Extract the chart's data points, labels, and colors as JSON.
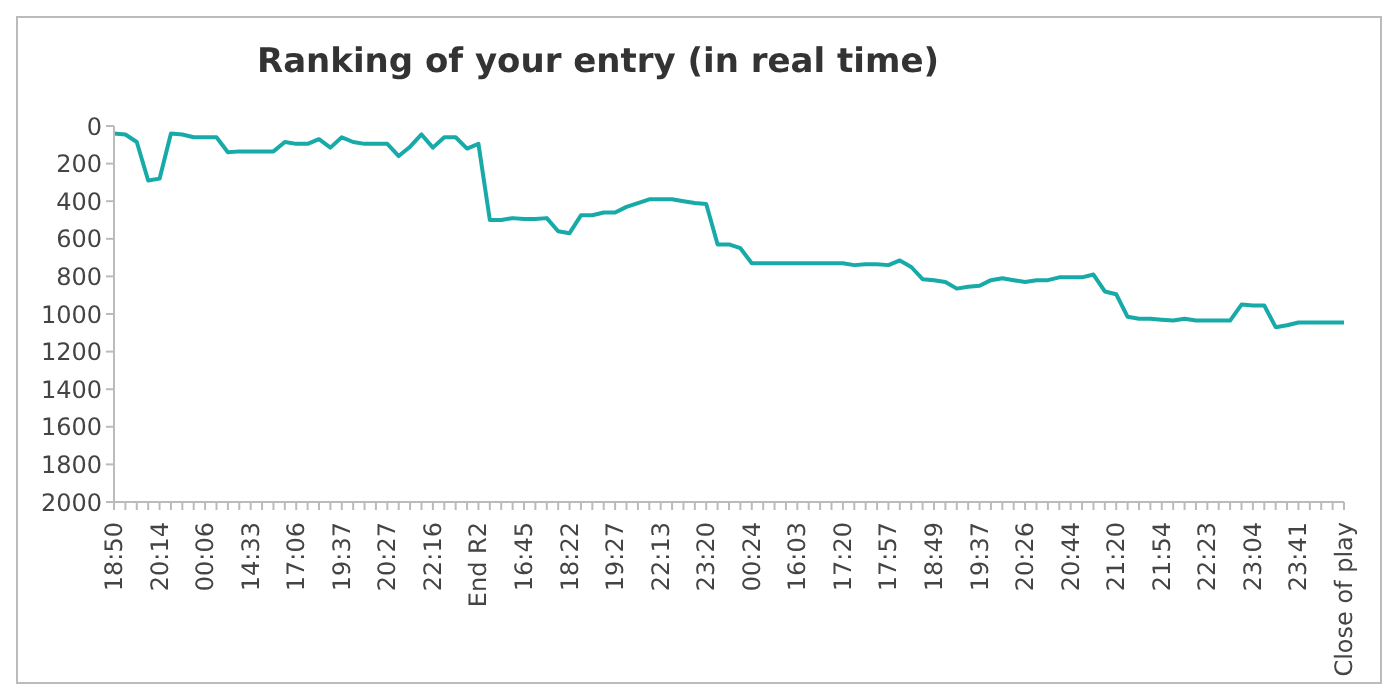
{
  "chart_data": {
    "type": "line",
    "title": "Ranking of your entry (in real time)",
    "categories": [
      "18:50",
      null,
      null,
      null,
      "20:14",
      null,
      null,
      null,
      "00:06",
      null,
      null,
      null,
      "14:33",
      null,
      null,
      null,
      "17:06",
      null,
      null,
      null,
      "19:37",
      null,
      null,
      null,
      "20:27",
      null,
      null,
      null,
      "22:16",
      null,
      null,
      null,
      "End R2",
      null,
      null,
      null,
      "16:45",
      null,
      null,
      null,
      "18:22",
      null,
      null,
      null,
      "19:27",
      null,
      null,
      null,
      "22:13",
      null,
      null,
      null,
      "23:20",
      null,
      null,
      null,
      "00:24",
      null,
      null,
      null,
      "16:03",
      null,
      null,
      null,
      "17:20",
      null,
      null,
      null,
      "17:57",
      null,
      null,
      null,
      "18:49",
      null,
      null,
      null,
      "19:37",
      null,
      null,
      null,
      "20:26",
      null,
      null,
      null,
      "20:44",
      null,
      null,
      null,
      "21:20",
      null,
      null,
      null,
      "21:54",
      null,
      null,
      null,
      "22:23",
      null,
      null,
      null,
      "23:04",
      null,
      null,
      null,
      "23:41",
      null,
      null,
      null,
      "Close of play"
    ],
    "series": [
      {
        "color": "#17aaa8",
        "values": [
          40,
          45,
          85,
          290,
          280,
          40,
          45,
          60,
          60,
          60,
          140,
          135,
          135,
          135,
          135,
          85,
          95,
          95,
          70,
          115,
          60,
          85,
          95,
          95,
          95,
          160,
          110,
          45,
          115,
          60,
          60,
          120,
          95,
          500,
          500,
          490,
          495,
          495,
          490,
          560,
          570,
          475,
          475,
          460,
          460,
          430,
          410,
          390,
          390,
          390,
          400,
          410,
          415,
          630,
          630,
          650,
          730,
          730,
          730,
          730,
          730,
          730,
          730,
          730,
          730,
          740,
          735,
          735,
          740,
          715,
          750,
          815,
          820,
          830,
          865,
          855,
          850,
          820,
          810,
          820,
          830,
          820,
          820,
          805,
          805,
          805,
          790,
          880,
          895,
          1015,
          1025,
          1025,
          1030,
          1035,
          1025,
          1035,
          1035,
          1035,
          1035,
          950,
          955,
          955,
          1070,
          1060,
          1045,
          1045,
          1045,
          1045,
          1045
        ]
      }
    ],
    "ylim": [
      2000,
      0
    ],
    "yticks": [
      0,
      200,
      400,
      600,
      800,
      1000,
      1200,
      1400,
      1600,
      1800,
      2000
    ],
    "grid": false,
    "legend": false,
    "marker": "none",
    "line_style": "solid"
  }
}
